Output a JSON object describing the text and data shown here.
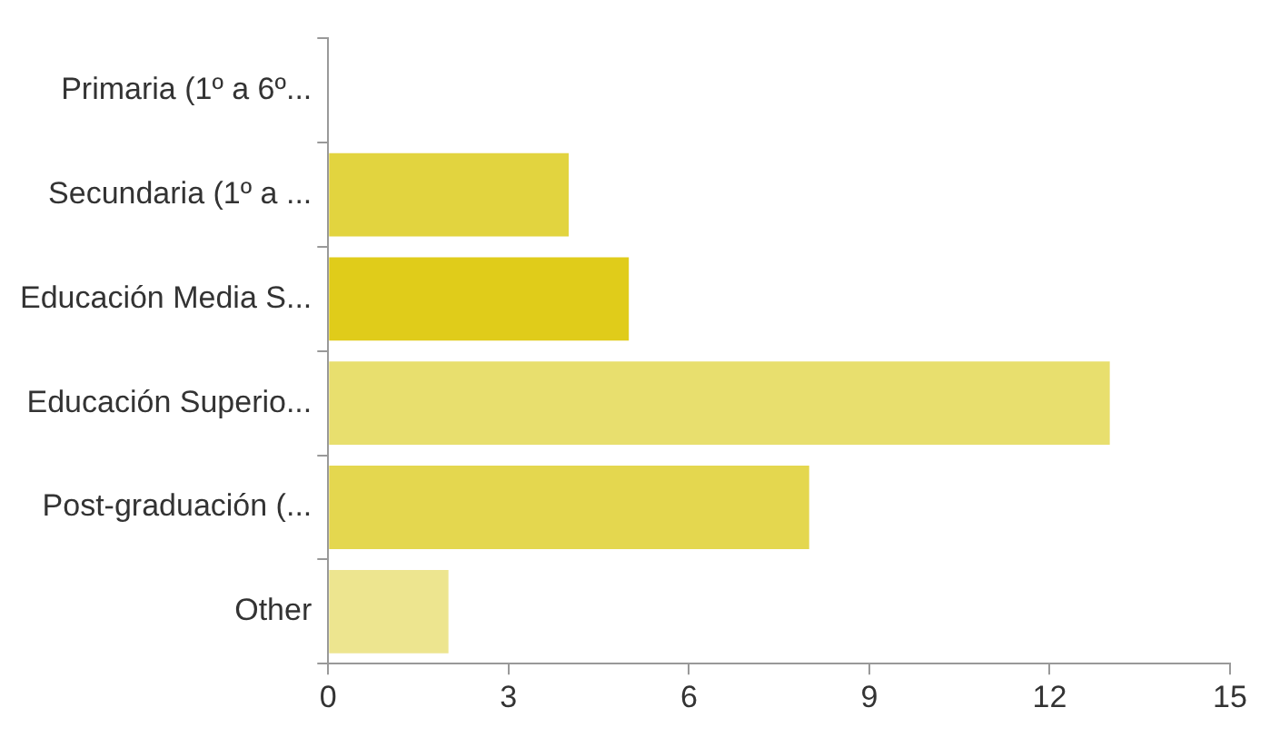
{
  "chart_data": {
    "type": "bar",
    "orientation": "horizontal",
    "categories": [
      "Primaria (1º a 6º...",
      "Secundaria (1º a ...",
      "Educación Media S...",
      "Educación Superio...",
      "Post-graduación (...",
      "Other"
    ],
    "values": [
      0,
      4,
      5,
      13,
      8,
      2
    ],
    "colors": [
      "#e2d43f",
      "#e2d43f",
      "#e0cc1a",
      "#e8df6e",
      "#e4d74f",
      "#ede58f"
    ],
    "xlim": [
      0,
      15
    ],
    "xticks": [
      0,
      3,
      6,
      9,
      12,
      15
    ],
    "grid": false,
    "legend": false
  }
}
